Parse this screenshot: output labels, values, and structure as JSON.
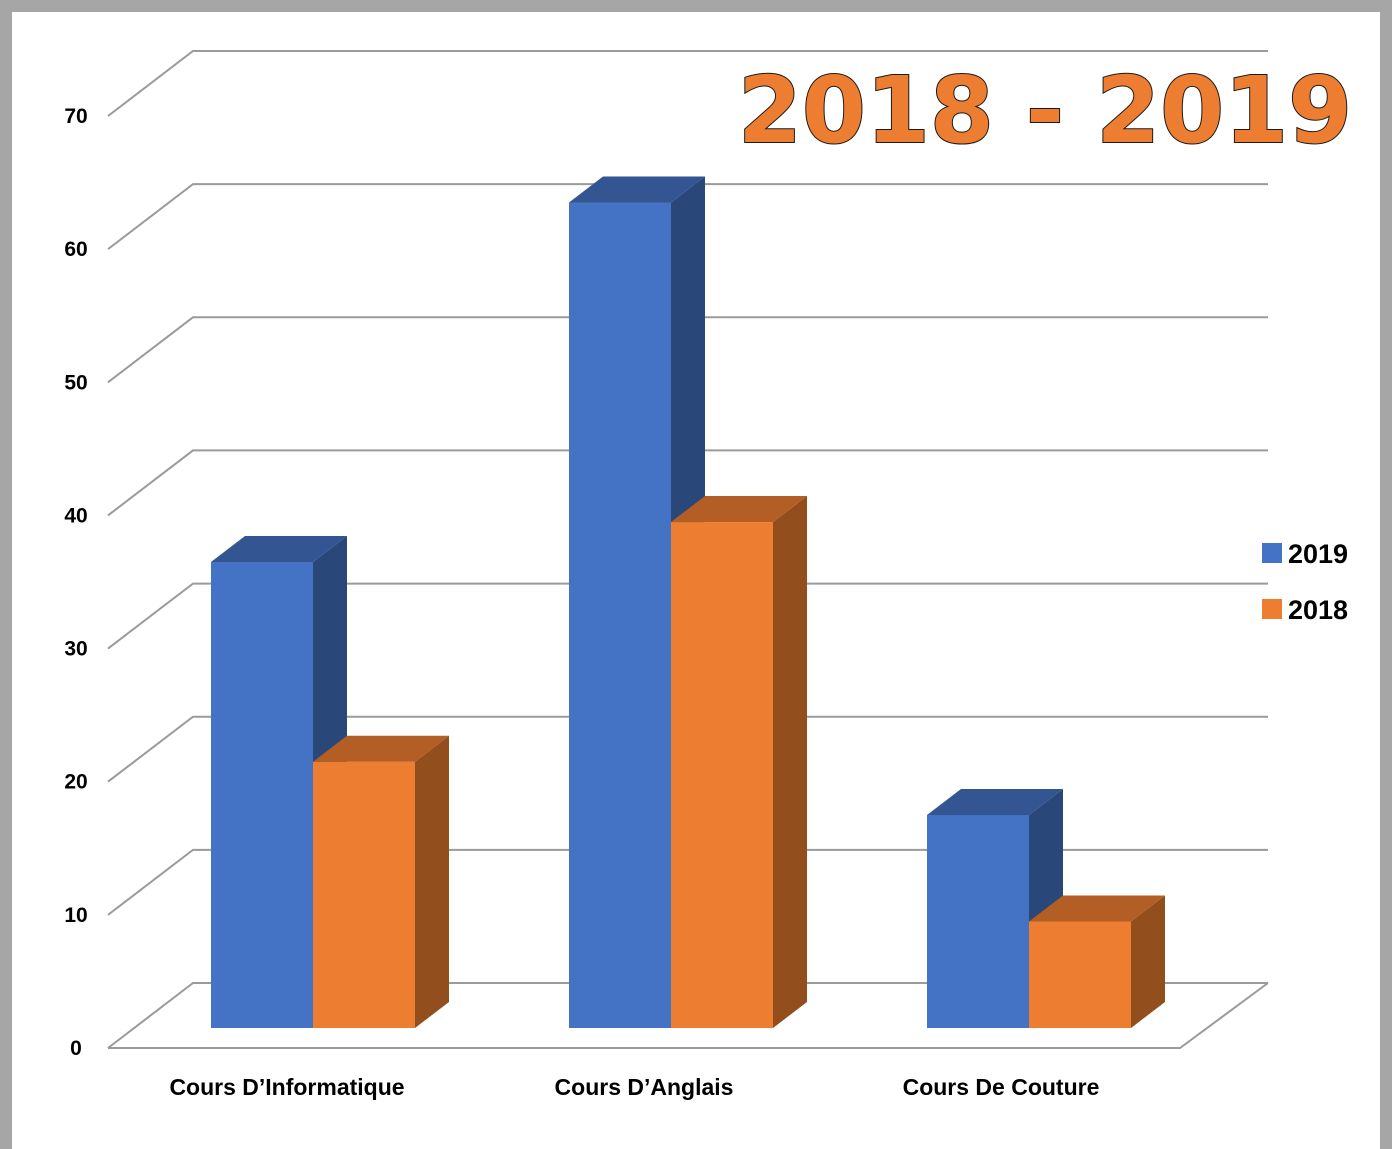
{
  "chart_data": {
    "type": "bar",
    "title": "2018 - 2019",
    "categories": [
      "Cours D’Informatique",
      "Cours D’Anglais",
      "Cours De Couture"
    ],
    "series": [
      {
        "name": "2019",
        "values": [
          35,
          62,
          16
        ],
        "color": "#4472c4"
      },
      {
        "name": "2018",
        "values": [
          20,
          38,
          8
        ],
        "color": "#ed7d31"
      }
    ],
    "ylim": [
      0,
      70
    ],
    "yticks": [
      0,
      10,
      20,
      30,
      40,
      50,
      60,
      70
    ],
    "grid": true,
    "three_d": true,
    "legend": "right"
  }
}
